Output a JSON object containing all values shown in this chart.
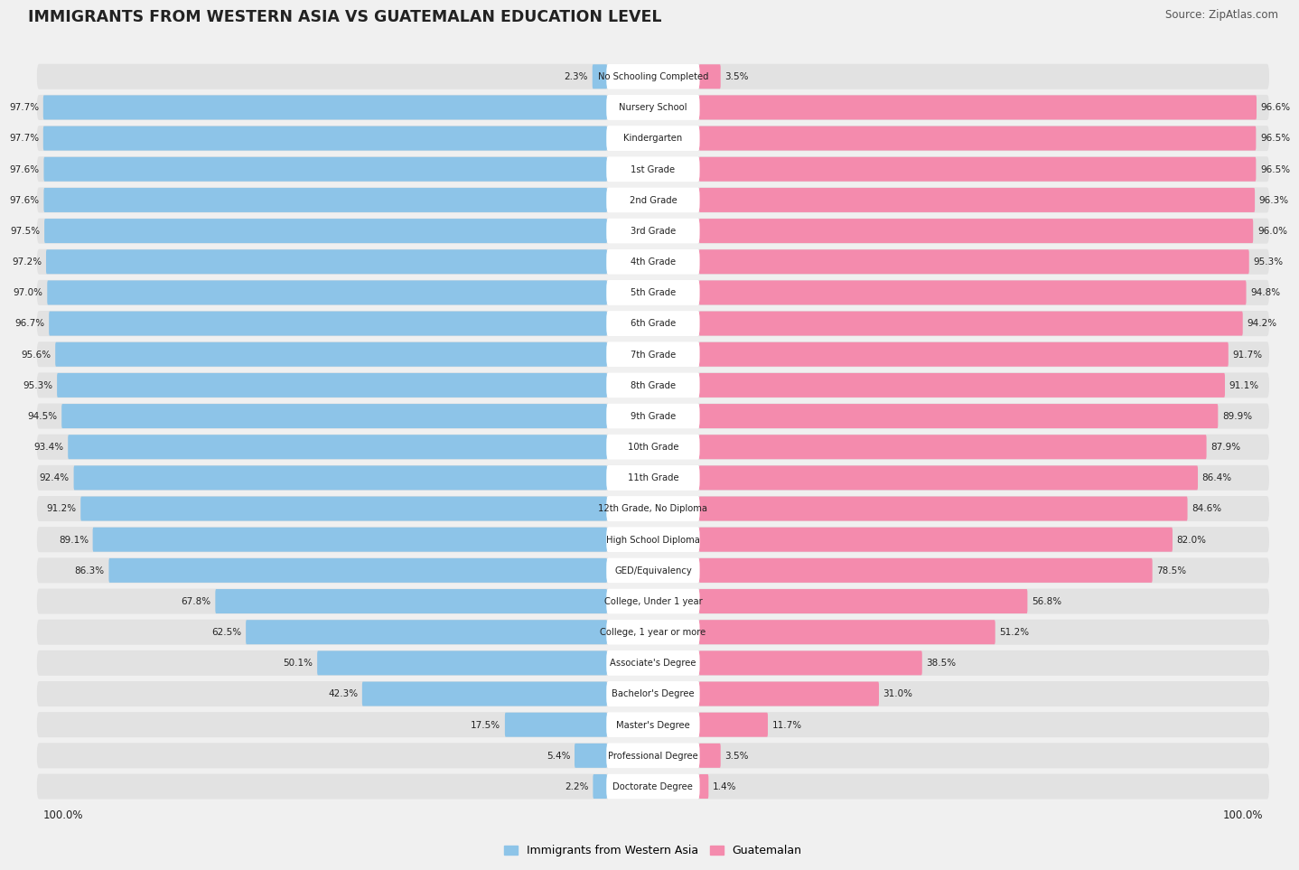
{
  "title": "IMMIGRANTS FROM WESTERN ASIA VS GUATEMALAN EDUCATION LEVEL",
  "source": "Source: ZipAtlas.com",
  "categories": [
    "No Schooling Completed",
    "Nursery School",
    "Kindergarten",
    "1st Grade",
    "2nd Grade",
    "3rd Grade",
    "4th Grade",
    "5th Grade",
    "6th Grade",
    "7th Grade",
    "8th Grade",
    "9th Grade",
    "10th Grade",
    "11th Grade",
    "12th Grade, No Diploma",
    "High School Diploma",
    "GED/Equivalency",
    "College, Under 1 year",
    "College, 1 year or more",
    "Associate's Degree",
    "Bachelor's Degree",
    "Master's Degree",
    "Professional Degree",
    "Doctorate Degree"
  ],
  "western_asia": [
    2.3,
    97.7,
    97.7,
    97.6,
    97.6,
    97.5,
    97.2,
    97.0,
    96.7,
    95.6,
    95.3,
    94.5,
    93.4,
    92.4,
    91.2,
    89.1,
    86.3,
    67.8,
    62.5,
    50.1,
    42.3,
    17.5,
    5.4,
    2.2
  ],
  "guatemalan": [
    3.5,
    96.6,
    96.5,
    96.5,
    96.3,
    96.0,
    95.3,
    94.8,
    94.2,
    91.7,
    91.1,
    89.9,
    87.9,
    86.4,
    84.6,
    82.0,
    78.5,
    56.8,
    51.2,
    38.5,
    31.0,
    11.7,
    3.5,
    1.4
  ],
  "blue_color": "#8DC4E8",
  "pink_color": "#F48BAD",
  "bg_color": "#F0F0F0",
  "row_bg_color": "#E8E8E8",
  "legend_blue": "Immigrants from Western Asia",
  "legend_pink": "Guatemalan"
}
